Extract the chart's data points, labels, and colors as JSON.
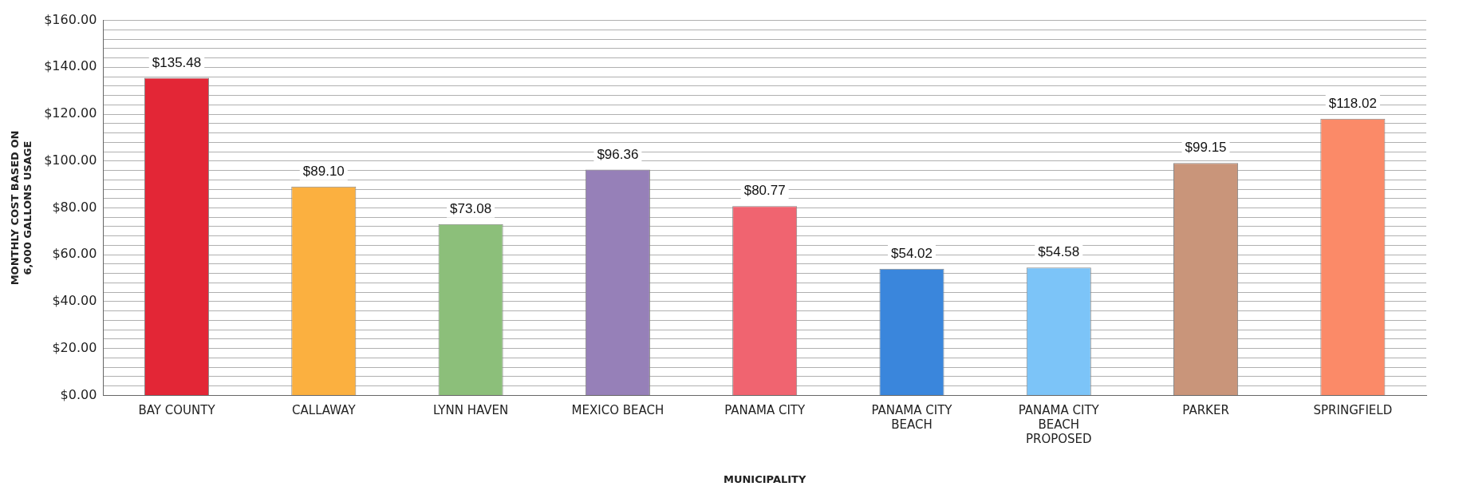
{
  "chart_data": {
    "type": "bar",
    "xlabel": "MUNICIPALITY",
    "ylabel": "MONTHLY COST BASED ON 6,000 GALLONS USAGE",
    "categories": [
      "BAY COUNTY",
      "CALLAWAY",
      "LYNN HAVEN",
      "MEXICO BEACH",
      "PANAMA CITY",
      "PANAMA CITY BEACH",
      "PANAMA CITY BEACH PROPOSED",
      "PARKER",
      "SPRINGFIELD"
    ],
    "values": [
      135.48,
      89.1,
      73.08,
      96.36,
      80.77,
      54.02,
      54.58,
      99.15,
      118.02
    ],
    "value_labels": [
      "$135.48",
      "$89.10",
      "$73.08",
      "$96.36",
      "$80.77",
      "$54.02",
      "$54.58",
      "$99.15",
      "$118.02"
    ],
    "colors": [
      "#e32636",
      "#fbb040",
      "#8cbf7a",
      "#9680b8",
      "#f06470",
      "#3a86dc",
      "#7cc4f8",
      "#c9957a",
      "#fb8a68"
    ],
    "ylim": [
      0,
      160
    ],
    "yticks": [
      {
        "value": 0,
        "label": "$0.00"
      },
      {
        "value": 4,
        "label": null
      },
      {
        "value": 8,
        "label": null
      },
      {
        "value": 12,
        "label": null
      },
      {
        "value": 16,
        "label": null
      },
      {
        "value": 20,
        "label": "$20.00"
      },
      {
        "value": 24,
        "label": null
      },
      {
        "value": 28,
        "label": null
      },
      {
        "value": 32,
        "label": null
      },
      {
        "value": 36,
        "label": null
      },
      {
        "value": 40,
        "label": "$40.00"
      },
      {
        "value": 44,
        "label": null
      },
      {
        "value": 48,
        "label": null
      },
      {
        "value": 52,
        "label": null
      },
      {
        "value": 56,
        "label": null
      },
      {
        "value": 60,
        "label": "$60.00"
      },
      {
        "value": 64,
        "label": null
      },
      {
        "value": 68,
        "label": null
      },
      {
        "value": 72,
        "label": null
      },
      {
        "value": 76,
        "label": null
      },
      {
        "value": 80,
        "label": "$80.00"
      },
      {
        "value": 84,
        "label": null
      },
      {
        "value": 88,
        "label": null
      },
      {
        "value": 92,
        "label": null
      },
      {
        "value": 96,
        "label": null
      },
      {
        "value": 100,
        "label": "$100.00"
      },
      {
        "value": 104,
        "label": null
      },
      {
        "value": 108,
        "label": null
      },
      {
        "value": 112,
        "label": null
      },
      {
        "value": 116,
        "label": null
      },
      {
        "value": 120,
        "label": "$120.00"
      },
      {
        "value": 124,
        "label": null
      },
      {
        "value": 128,
        "label": null
      },
      {
        "value": 132,
        "label": null
      },
      {
        "value": 136,
        "label": null
      },
      {
        "value": 140,
        "label": "$140.00"
      },
      {
        "value": 144,
        "label": null
      },
      {
        "value": 148,
        "label": null
      },
      {
        "value": 152,
        "label": null
      },
      {
        "value": 156,
        "label": null
      },
      {
        "value": 160,
        "label": "$160.00"
      }
    ],
    "grid": "y",
    "legend": false
  }
}
